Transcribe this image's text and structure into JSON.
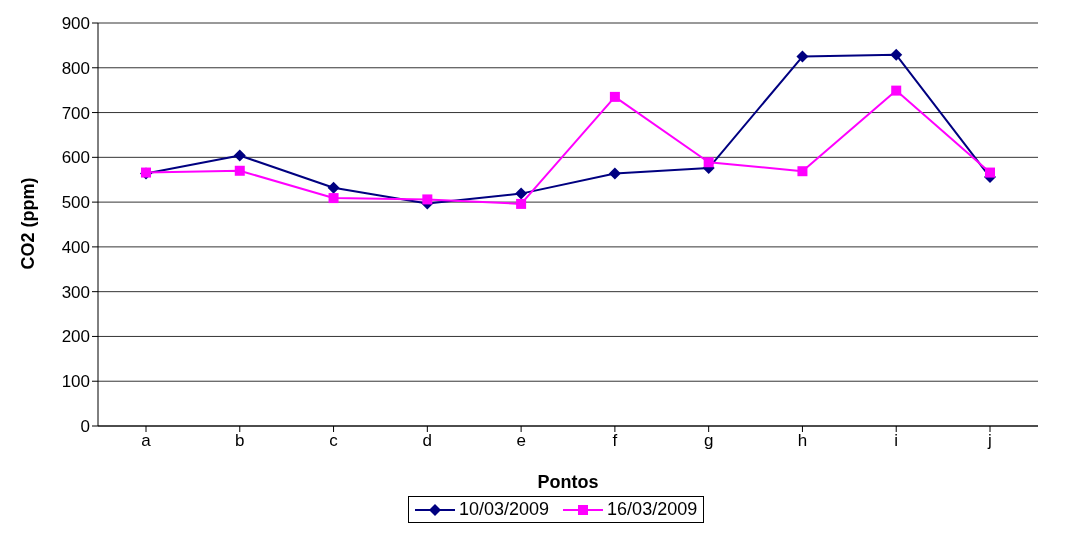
{
  "chart_data": {
    "type": "line",
    "xlabel": "Pontos",
    "ylabel": "CO2 (ppm)",
    "categories": [
      "a",
      "b",
      "c",
      "d",
      "e",
      "f",
      "g",
      "h",
      "i",
      "j"
    ],
    "series": [
      {
        "name": "10/03/2009",
        "color": "#000080",
        "marker": "diamond",
        "values": [
          564,
          604,
          532,
          497,
          519,
          564,
          576,
          825,
          829,
          556
        ]
      },
      {
        "name": "16/03/2009",
        "color": "#ff00ff",
        "marker": "square",
        "values": [
          566,
          570,
          509,
          506,
          496,
          735,
          589,
          569,
          749,
          566
        ]
      }
    ],
    "ylim": [
      0,
      900
    ],
    "yticks": [
      0,
      100,
      200,
      300,
      400,
      500,
      600,
      700,
      800,
      900
    ],
    "grid": "y",
    "legend": "bottom"
  }
}
